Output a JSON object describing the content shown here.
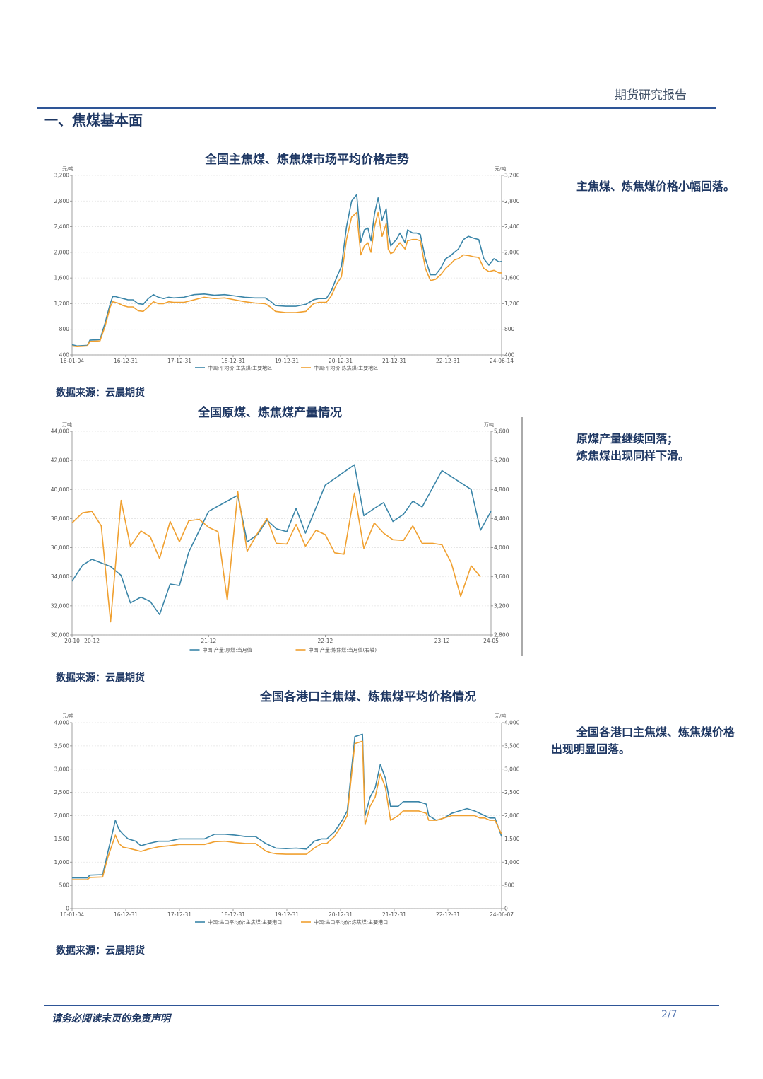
{
  "header": {
    "title": "期货研究报告"
  },
  "section": {
    "title": "一、焦煤基本面"
  },
  "charts": [
    {
      "title": "全国主焦煤、炼焦煤市场平均价格走势",
      "source": "数据来源：云晨期货",
      "comment": "主焦煤、炼焦煤价格小幅回落。"
    },
    {
      "title": "全国原煤、炼焦煤产量情况",
      "source": "数据来源：云晨期货",
      "comment_lines": [
        "原煤产量继续回落；",
        "炼焦煤出现同样下滑。"
      ]
    },
    {
      "title": "全国各港口主焦煤、炼焦煤平均价格情况",
      "source": "数据来源：云晨期货",
      "comment": "全国各港口主焦煤、炼焦煤价格出现明显回落。"
    }
  ],
  "chart_data": [
    {
      "type": "line",
      "unit_left": "元/吨",
      "unit_right": "元/吨",
      "ylim": [
        400,
        3200
      ],
      "yticks": [
        400,
        800,
        1200,
        1600,
        2000,
        2400,
        2800,
        3200
      ],
      "xticks": [
        "16-01-04",
        "16-12-31",
        "17-12-31",
        "18-12-31",
        "19-12-31",
        "20-12-31",
        "21-12-31",
        "22-12-31",
        "24-06-14"
      ],
      "xrange": [
        2016.0,
        2024.45
      ],
      "legend": "bottom",
      "series": [
        {
          "name": "中国:平均价:主焦煤:主要地区",
          "color": "#3a85a8",
          "x": [
            2016.0,
            2016.1,
            2016.3,
            2016.35,
            2016.55,
            2016.65,
            2016.75,
            2016.8,
            2016.85,
            2016.9,
            2017.0,
            2017.1,
            2017.2,
            2017.3,
            2017.4,
            2017.5,
            2017.6,
            2017.7,
            2017.8,
            2017.9,
            2018.0,
            2018.2,
            2018.4,
            2018.6,
            2018.8,
            2019.0,
            2019.2,
            2019.4,
            2019.6,
            2019.8,
            2019.9,
            2020.0,
            2020.2,
            2020.4,
            2020.6,
            2020.75,
            2020.85,
            2021.0,
            2021.1,
            2021.2,
            2021.3,
            2021.4,
            2021.5,
            2021.6,
            2021.68,
            2021.75,
            2021.82,
            2021.88,
            2021.95,
            2022.02,
            2022.1,
            2022.18,
            2022.22,
            2022.27,
            2022.32,
            2022.38,
            2022.45,
            2022.55,
            2022.6,
            2022.7,
            2022.78,
            2022.85,
            2022.95,
            2023.05,
            2023.15,
            2023.25,
            2023.35,
            2023.45,
            2023.52,
            2023.6,
            2023.7,
            2023.8,
            2023.9,
            2024.0,
            2024.1,
            2024.2,
            2024.3,
            2024.4,
            2024.45
          ],
          "y": [
            560,
            540,
            550,
            630,
            640,
            900,
            1200,
            1310,
            1310,
            1300,
            1280,
            1260,
            1260,
            1200,
            1190,
            1280,
            1340,
            1300,
            1280,
            1300,
            1290,
            1300,
            1340,
            1350,
            1330,
            1340,
            1320,
            1300,
            1290,
            1290,
            1240,
            1170,
            1160,
            1160,
            1190,
            1260,
            1280,
            1280,
            1400,
            1600,
            1780,
            2400,
            2800,
            2900,
            2160,
            2350,
            2380,
            2180,
            2600,
            2850,
            2500,
            2680,
            2300,
            2100,
            2150,
            2200,
            2300,
            2150,
            2350,
            2300,
            2300,
            2280,
            1900,
            1650,
            1650,
            1750,
            1900,
            1950,
            2000,
            2050,
            2200,
            2250,
            2220,
            2200,
            1900,
            1800,
            1900,
            1850,
            1860
          ]
        },
        {
          "name": "中国:平均价:炼焦煤:主要地区",
          "color": "#f0a030",
          "x": [
            2016.0,
            2016.1,
            2016.3,
            2016.35,
            2016.55,
            2016.65,
            2016.75,
            2016.8,
            2016.85,
            2016.9,
            2017.0,
            2017.1,
            2017.2,
            2017.3,
            2017.4,
            2017.5,
            2017.6,
            2017.7,
            2017.8,
            2017.9,
            2018.0,
            2018.2,
            2018.4,
            2018.6,
            2018.8,
            2019.0,
            2019.2,
            2019.4,
            2019.6,
            2019.8,
            2019.9,
            2020.0,
            2020.2,
            2020.4,
            2020.6,
            2020.75,
            2020.85,
            2021.0,
            2021.1,
            2021.2,
            2021.3,
            2021.4,
            2021.5,
            2021.6,
            2021.68,
            2021.75,
            2021.82,
            2021.88,
            2021.95,
            2022.02,
            2022.1,
            2022.18,
            2022.22,
            2022.27,
            2022.32,
            2022.38,
            2022.45,
            2022.55,
            2022.6,
            2022.7,
            2022.78,
            2022.85,
            2022.95,
            2023.05,
            2023.15,
            2023.25,
            2023.35,
            2023.45,
            2023.52,
            2023.6,
            2023.7,
            2023.8,
            2023.9,
            2024.0,
            2024.1,
            2024.2,
            2024.3,
            2024.4,
            2024.45
          ],
          "y": [
            540,
            530,
            540,
            610,
            620,
            850,
            1150,
            1230,
            1220,
            1210,
            1170,
            1150,
            1150,
            1090,
            1080,
            1150,
            1230,
            1200,
            1200,
            1230,
            1220,
            1220,
            1260,
            1300,
            1280,
            1290,
            1260,
            1230,
            1210,
            1200,
            1150,
            1080,
            1060,
            1060,
            1080,
            1200,
            1220,
            1220,
            1320,
            1500,
            1620,
            2200,
            2550,
            2620,
            1960,
            2100,
            2150,
            2000,
            2400,
            2620,
            2250,
            2450,
            2050,
            1980,
            2000,
            2080,
            2150,
            2050,
            2180,
            2200,
            2200,
            2180,
            1750,
            1560,
            1580,
            1650,
            1750,
            1820,
            1880,
            1900,
            1960,
            1950,
            1930,
            1920,
            1750,
            1700,
            1720,
            1680,
            1680
          ]
        }
      ]
    },
    {
      "type": "line",
      "unit_left": "万吨",
      "unit_right": "万吨",
      "ylim": [
        30000,
        44000
      ],
      "ylim_right": [
        2800,
        5600
      ],
      "yticks": [
        30000,
        32000,
        34000,
        36000,
        38000,
        40000,
        42000,
        44000
      ],
      "yticks_right": [
        2800,
        3200,
        3600,
        4000,
        4400,
        4800,
        5200,
        5600
      ],
      "xticks": [
        "20-10",
        "20-12",
        "21-12",
        "22-12",
        "23-12",
        "24-05"
      ],
      "xrange": [
        2020.79,
        2024.38
      ],
      "legend": "bottom",
      "series": [
        {
          "name": "中国:产量:原煤:当月值",
          "color": "#3a85a8",
          "axis": "left",
          "x": [
            2020.79,
            2020.88,
            2020.96,
            2021.12,
            2021.21,
            2021.29,
            2021.38,
            2021.46,
            2021.54,
            2021.63,
            2021.71,
            2021.79,
            2021.96,
            2022.21,
            2022.29,
            2022.38,
            2022.46,
            2022.54,
            2022.63,
            2022.71,
            2022.79,
            2022.96,
            2023.21,
            2023.29,
            2023.38,
            2023.46,
            2023.54,
            2023.63,
            2023.71,
            2023.79,
            2023.96,
            2024.21,
            2024.29,
            2024.38
          ],
          "y": [
            33700,
            34800,
            35200,
            34700,
            34100,
            32200,
            32600,
            32300,
            31400,
            33500,
            33400,
            35700,
            38500,
            39600,
            36400,
            36900,
            37900,
            37300,
            37100,
            38700,
            37000,
            40300,
            41700,
            38200,
            38700,
            39100,
            37800,
            38300,
            39200,
            38800,
            41300,
            40000,
            37200,
            38500
          ]
        },
        {
          "name": "中国:产量:炼焦煤:当月值(右轴)",
          "color": "#f0a030",
          "axis": "right",
          "x": [
            2020.79,
            2020.88,
            2020.96,
            2021.04,
            2021.12,
            2021.21,
            2021.29,
            2021.38,
            2021.46,
            2021.54,
            2021.63,
            2021.71,
            2021.79,
            2021.88,
            2021.96,
            2022.04,
            2022.12,
            2022.21,
            2022.29,
            2022.38,
            2022.46,
            2022.54,
            2022.63,
            2022.71,
            2022.79,
            2022.88,
            2022.96,
            2023.04,
            2023.12,
            2023.21,
            2023.29,
            2023.38,
            2023.46,
            2023.54,
            2023.63,
            2023.71,
            2023.79,
            2023.88,
            2023.96,
            2024.04,
            2024.12,
            2024.21,
            2024.29
          ],
          "y": [
            4340,
            4480,
            4500,
            4300,
            2980,
            4650,
            4020,
            4230,
            4150,
            3850,
            4360,
            4080,
            4370,
            4390,
            4280,
            4220,
            3280,
            4770,
            3950,
            4200,
            4400,
            4060,
            4050,
            4320,
            4020,
            4240,
            4180,
            3930,
            3910,
            4750,
            3990,
            4340,
            4200,
            4110,
            4100,
            4300,
            4060,
            4060,
            4040,
            3790,
            3330,
            3750,
            3600
          ]
        }
      ]
    },
    {
      "type": "line",
      "unit_left": "元/吨",
      "unit_right": "元/吨",
      "ylim": [
        0,
        4000
      ],
      "yticks": [
        0,
        500,
        1000,
        1500,
        2000,
        2500,
        3000,
        3500,
        4000
      ],
      "xticks": [
        "16-01-04",
        "16-12-31",
        "17-12-31",
        "18-12-31",
        "19-12-31",
        "20-12-31",
        "21-12-31",
        "22-12-31",
        "24-06-07"
      ],
      "xrange": [
        2016.0,
        2024.43
      ],
      "legend": "bottom",
      "series": [
        {
          "name": "中国:进口平均价:主焦煤:主要港口",
          "color": "#3a85a8",
          "x": [
            2016.0,
            2016.3,
            2016.35,
            2016.6,
            2016.7,
            2016.85,
            2016.92,
            2017.0,
            2017.1,
            2017.25,
            2017.35,
            2017.5,
            2017.7,
            2017.9,
            2018.1,
            2018.3,
            2018.5,
            2018.6,
            2018.8,
            2019.0,
            2019.2,
            2019.4,
            2019.6,
            2019.8,
            2019.9,
            2020.0,
            2020.2,
            2020.4,
            2020.6,
            2020.75,
            2020.9,
            2021.0,
            2021.15,
            2021.3,
            2021.4,
            2021.55,
            2021.7,
            2021.75,
            2021.85,
            2021.95,
            2022.05,
            2022.15,
            2022.25,
            2022.4,
            2022.5,
            2022.65,
            2022.8,
            2022.95,
            2023.0,
            2023.15,
            2023.3,
            2023.45,
            2023.6,
            2023.75,
            2023.9,
            2024.0,
            2024.1,
            2024.2,
            2024.3,
            2024.43
          ],
          "y": [
            660,
            660,
            720,
            730,
            1200,
            1900,
            1700,
            1600,
            1500,
            1450,
            1350,
            1400,
            1450,
            1450,
            1500,
            1500,
            1500,
            1500,
            1600,
            1600,
            1580,
            1550,
            1550,
            1400,
            1350,
            1300,
            1290,
            1300,
            1280,
            1450,
            1500,
            1500,
            1650,
            1900,
            2100,
            3700,
            3750,
            2000,
            2400,
            2600,
            3100,
            2800,
            2200,
            2200,
            2300,
            2300,
            2300,
            2250,
            2000,
            1900,
            1950,
            2050,
            2100,
            2150,
            2100,
            2050,
            2000,
            1950,
            1950,
            1550
          ]
        },
        {
          "name": "中国:进口平均价:炼焦煤:主要港口",
          "color": "#f0a030",
          "x": [
            2016.0,
            2016.3,
            2016.35,
            2016.6,
            2016.7,
            2016.85,
            2016.92,
            2017.0,
            2017.1,
            2017.25,
            2017.35,
            2017.5,
            2017.7,
            2017.9,
            2018.1,
            2018.3,
            2018.5,
            2018.6,
            2018.8,
            2019.0,
            2019.2,
            2019.4,
            2019.6,
            2019.8,
            2019.9,
            2020.0,
            2020.2,
            2020.4,
            2020.6,
            2020.75,
            2020.9,
            2021.0,
            2021.15,
            2021.3,
            2021.4,
            2021.55,
            2021.7,
            2021.75,
            2021.85,
            2021.95,
            2022.05,
            2022.15,
            2022.25,
            2022.4,
            2022.5,
            2022.65,
            2022.8,
            2022.95,
            2023.0,
            2023.15,
            2023.3,
            2023.45,
            2023.6,
            2023.75,
            2023.9,
            2024.0,
            2024.1,
            2024.2,
            2024.3,
            2024.43
          ],
          "y": [
            620,
            620,
            670,
            680,
            1100,
            1580,
            1400,
            1320,
            1300,
            1260,
            1230,
            1280,
            1330,
            1350,
            1380,
            1380,
            1380,
            1380,
            1440,
            1450,
            1420,
            1400,
            1400,
            1240,
            1200,
            1180,
            1170,
            1170,
            1170,
            1300,
            1400,
            1400,
            1550,
            1800,
            2000,
            3550,
            3600,
            1800,
            2200,
            2400,
            2900,
            2600,
            1900,
            2000,
            2100,
            2100,
            2100,
            2050,
            1900,
            1900,
            1950,
            2000,
            2000,
            2000,
            2000,
            1950,
            1950,
            1900,
            1900,
            1600
          ]
        }
      ]
    }
  ],
  "footer": {
    "note": "请务必阅读末页的免责声明",
    "page": "2/7"
  }
}
